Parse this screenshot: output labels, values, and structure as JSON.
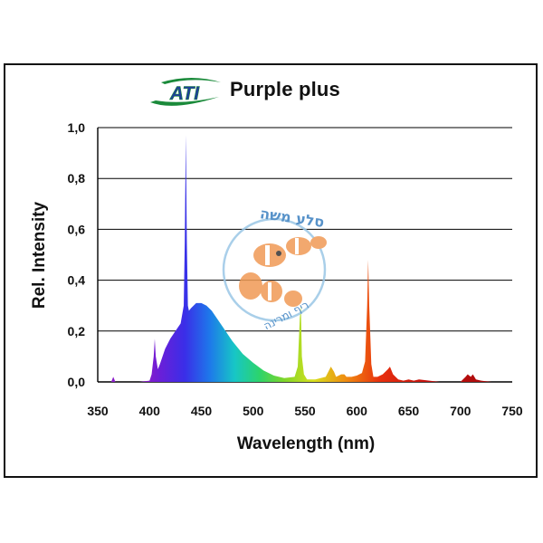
{
  "header": {
    "brand": "ATI",
    "title": "Purple plus"
  },
  "colors": {
    "brand_green": "#1a8a3a",
    "brand_blue": "#1f3f9a",
    "grid": "#000000"
  },
  "watermark": {
    "text_top": "סלע משה",
    "text_bottom": "ריף ומרינה",
    "icon": "clownfish-logo"
  },
  "chart_data": {
    "type": "area",
    "title": "Purple plus",
    "xlabel": "Wavelength (nm)",
    "ylabel": "Rel. Intensity",
    "xlim": [
      350,
      750
    ],
    "ylim": [
      0,
      1
    ],
    "xticks": [
      350,
      400,
      450,
      500,
      550,
      600,
      650,
      700,
      750
    ],
    "xtick_labels": [
      "350",
      "400",
      "450",
      "500",
      "550",
      "600",
      "650",
      "700",
      "750"
    ],
    "yticks": [
      0,
      0.2,
      0.4,
      0.6,
      0.8,
      1.0
    ],
    "ytick_labels": [
      "0,0",
      "0,2",
      "0,4",
      "0,6",
      "0,8",
      "1,0"
    ],
    "grid": "horizontal",
    "fill": "wavelength-spectrum",
    "series": [
      {
        "x": [
          360,
          363,
          365,
          367,
          370,
          380,
          390,
          400,
          402,
          404,
          405,
          406,
          408,
          410,
          415,
          420,
          425,
          430,
          433,
          434,
          435,
          436,
          437,
          438,
          440,
          445,
          450,
          455,
          460,
          465,
          470,
          475,
          480,
          490,
          500,
          510,
          520,
          530,
          540,
          543,
          545,
          546,
          547,
          549,
          552,
          560,
          570,
          575,
          578,
          580,
          585,
          588,
          590,
          595,
          600,
          605,
          608,
          610,
          611,
          612,
          614,
          616,
          620,
          625,
          630,
          632,
          635,
          640,
          645,
          650,
          655,
          660,
          680,
          690,
          700,
          705,
          707,
          710,
          712,
          715,
          720,
          730,
          740,
          750
        ],
        "y": [
          0,
          0,
          0.02,
          0,
          0,
          0,
          0,
          0.005,
          0.03,
          0.1,
          0.17,
          0.1,
          0.05,
          0.07,
          0.13,
          0.17,
          0.2,
          0.23,
          0.3,
          0.55,
          0.97,
          0.55,
          0.3,
          0.28,
          0.29,
          0.31,
          0.31,
          0.3,
          0.28,
          0.25,
          0.22,
          0.19,
          0.16,
          0.11,
          0.075,
          0.045,
          0.025,
          0.015,
          0.02,
          0.06,
          0.25,
          0.3,
          0.1,
          0.03,
          0.01,
          0.01,
          0.02,
          0.06,
          0.04,
          0.02,
          0.03,
          0.03,
          0.02,
          0.02,
          0.025,
          0.035,
          0.08,
          0.3,
          0.48,
          0.3,
          0.07,
          0.02,
          0.02,
          0.03,
          0.05,
          0.06,
          0.03,
          0.01,
          0.005,
          0.01,
          0.005,
          0.01,
          0,
          0,
          0,
          0.02,
          0.03,
          0.02,
          0.03,
          0.01,
          0.005,
          0,
          0,
          0
        ]
      }
    ]
  }
}
